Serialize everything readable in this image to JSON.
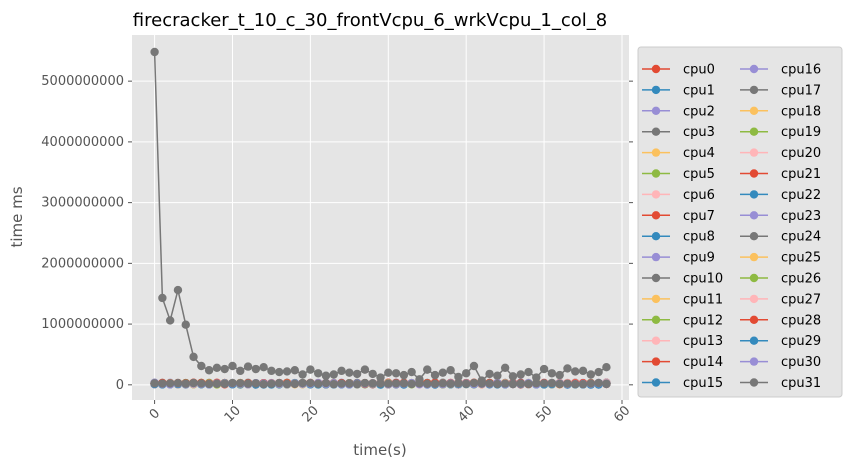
{
  "chart_data": {
    "type": "line",
    "title": "firecracker_t_10_c_30_frontVcpu_6_wrkVcpu_1_col_8",
    "xlabel": "time(s)",
    "ylabel": "time ms",
    "xlim": [
      -2.9,
      60.9
    ],
    "ylim": [
      -250000000,
      5760000000
    ],
    "xticks": [
      0,
      10,
      20,
      30,
      40,
      50,
      60
    ],
    "xtick_labels": [
      "0",
      "10",
      "20",
      "30",
      "40",
      "50",
      "60"
    ],
    "xtick_rotation": 45,
    "yticks": [
      0,
      1000000000,
      2000000000,
      3000000000,
      4000000000,
      5000000000
    ],
    "ytick_labels": [
      "0",
      "1000000000",
      "2000000000",
      "3000000000",
      "4000000000",
      "5000000000"
    ],
    "grid": true,
    "legend": {
      "placement": "outside-right",
      "columns": 2
    },
    "x": [
      0,
      1,
      2,
      3,
      4,
      5,
      6,
      7,
      8,
      9,
      10,
      11,
      12,
      13,
      14,
      15,
      16,
      17,
      18,
      19,
      20,
      21,
      22,
      23,
      24,
      25,
      26,
      27,
      28,
      29,
      30,
      31,
      32,
      33,
      34,
      35,
      36,
      37,
      38,
      39,
      40,
      41,
      42,
      43,
      44,
      45,
      46,
      47,
      48,
      49,
      50,
      51,
      52,
      53,
      54,
      55,
      56,
      57,
      58
    ],
    "series": [
      {
        "name": "cpu0",
        "color": "#E24A33",
        "base": 20000000
      },
      {
        "name": "cpu1",
        "color": "#348ABD",
        "base": 15000000
      },
      {
        "name": "cpu2",
        "color": "#988ED5",
        "base": 18000000
      },
      {
        "name": "cpu3",
        "color": "#777777",
        "base": 22000000
      },
      {
        "name": "cpu4",
        "color": "#FBC15E",
        "base": 16000000
      },
      {
        "name": "cpu5",
        "color": "#8EBA42",
        "base": 19000000
      },
      {
        "name": "cpu6",
        "color": "#FFB5B8",
        "base": 17000000
      },
      {
        "name": "cpu7",
        "color": "#E24A33",
        "base": 25000000
      },
      {
        "name": "cpu8",
        "color": "#348ABD",
        "base": 14000000
      },
      {
        "name": "cpu9",
        "color": "#988ED5",
        "base": 21000000
      },
      {
        "name": "cpu10",
        "color": "#777777",
        "base": 23000000
      },
      {
        "name": "cpu11",
        "color": "#FBC15E",
        "base": 18000000
      },
      {
        "name": "cpu12",
        "color": "#8EBA42",
        "base": 20000000
      },
      {
        "name": "cpu13",
        "color": "#FFB5B8",
        "base": 16000000
      },
      {
        "name": "cpu14",
        "color": "#E24A33",
        "base": 19000000
      },
      {
        "name": "cpu15",
        "color": "#348ABD",
        "base": 12000000
      },
      {
        "name": "cpu16",
        "color": "#988ED5",
        "base": 24000000
      },
      {
        "name": "cpu17",
        "color": "#777777",
        "values": [
          5480000000,
          1430000000,
          1060000000,
          1560000000,
          990000000,
          460000000,
          310000000,
          240000000,
          280000000,
          260000000,
          310000000,
          230000000,
          300000000,
          260000000,
          290000000,
          230000000,
          210000000,
          220000000,
          240000000,
          170000000,
          250000000,
          190000000,
          150000000,
          170000000,
          230000000,
          200000000,
          180000000,
          250000000,
          180000000,
          120000000,
          200000000,
          190000000,
          160000000,
          210000000,
          90000000,
          250000000,
          160000000,
          200000000,
          240000000,
          130000000,
          190000000,
          310000000,
          70000000,
          180000000,
          150000000,
          280000000,
          140000000,
          170000000,
          210000000,
          120000000,
          260000000,
          190000000,
          160000000,
          270000000,
          220000000,
          230000000,
          170000000,
          210000000,
          290000000
        ]
      },
      {
        "name": "cpu18",
        "color": "#FBC15E",
        "base": 17000000
      },
      {
        "name": "cpu19",
        "color": "#8EBA42",
        "base": 21000000
      },
      {
        "name": "cpu20",
        "color": "#FFB5B8",
        "base": 15000000
      },
      {
        "name": "cpu21",
        "color": "#E24A33",
        "base": 18000000
      },
      {
        "name": "cpu22",
        "color": "#348ABD",
        "base": 16000000
      },
      {
        "name": "cpu23",
        "color": "#988ED5",
        "base": 20000000
      },
      {
        "name": "cpu24",
        "color": "#777777",
        "base": 22000000
      },
      {
        "name": "cpu25",
        "color": "#FBC15E",
        "base": 19000000
      },
      {
        "name": "cpu26",
        "color": "#8EBA42",
        "base": 17000000
      },
      {
        "name": "cpu27",
        "color": "#FFB5B8",
        "base": 21000000
      },
      {
        "name": "cpu28",
        "color": "#E24A33",
        "base": 23000000
      },
      {
        "name": "cpu29",
        "color": "#348ABD",
        "base": 14000000
      },
      {
        "name": "cpu30",
        "color": "#988ED5",
        "base": 18000000
      },
      {
        "name": "cpu31",
        "color": "#777777",
        "base": 20000000
      }
    ]
  }
}
